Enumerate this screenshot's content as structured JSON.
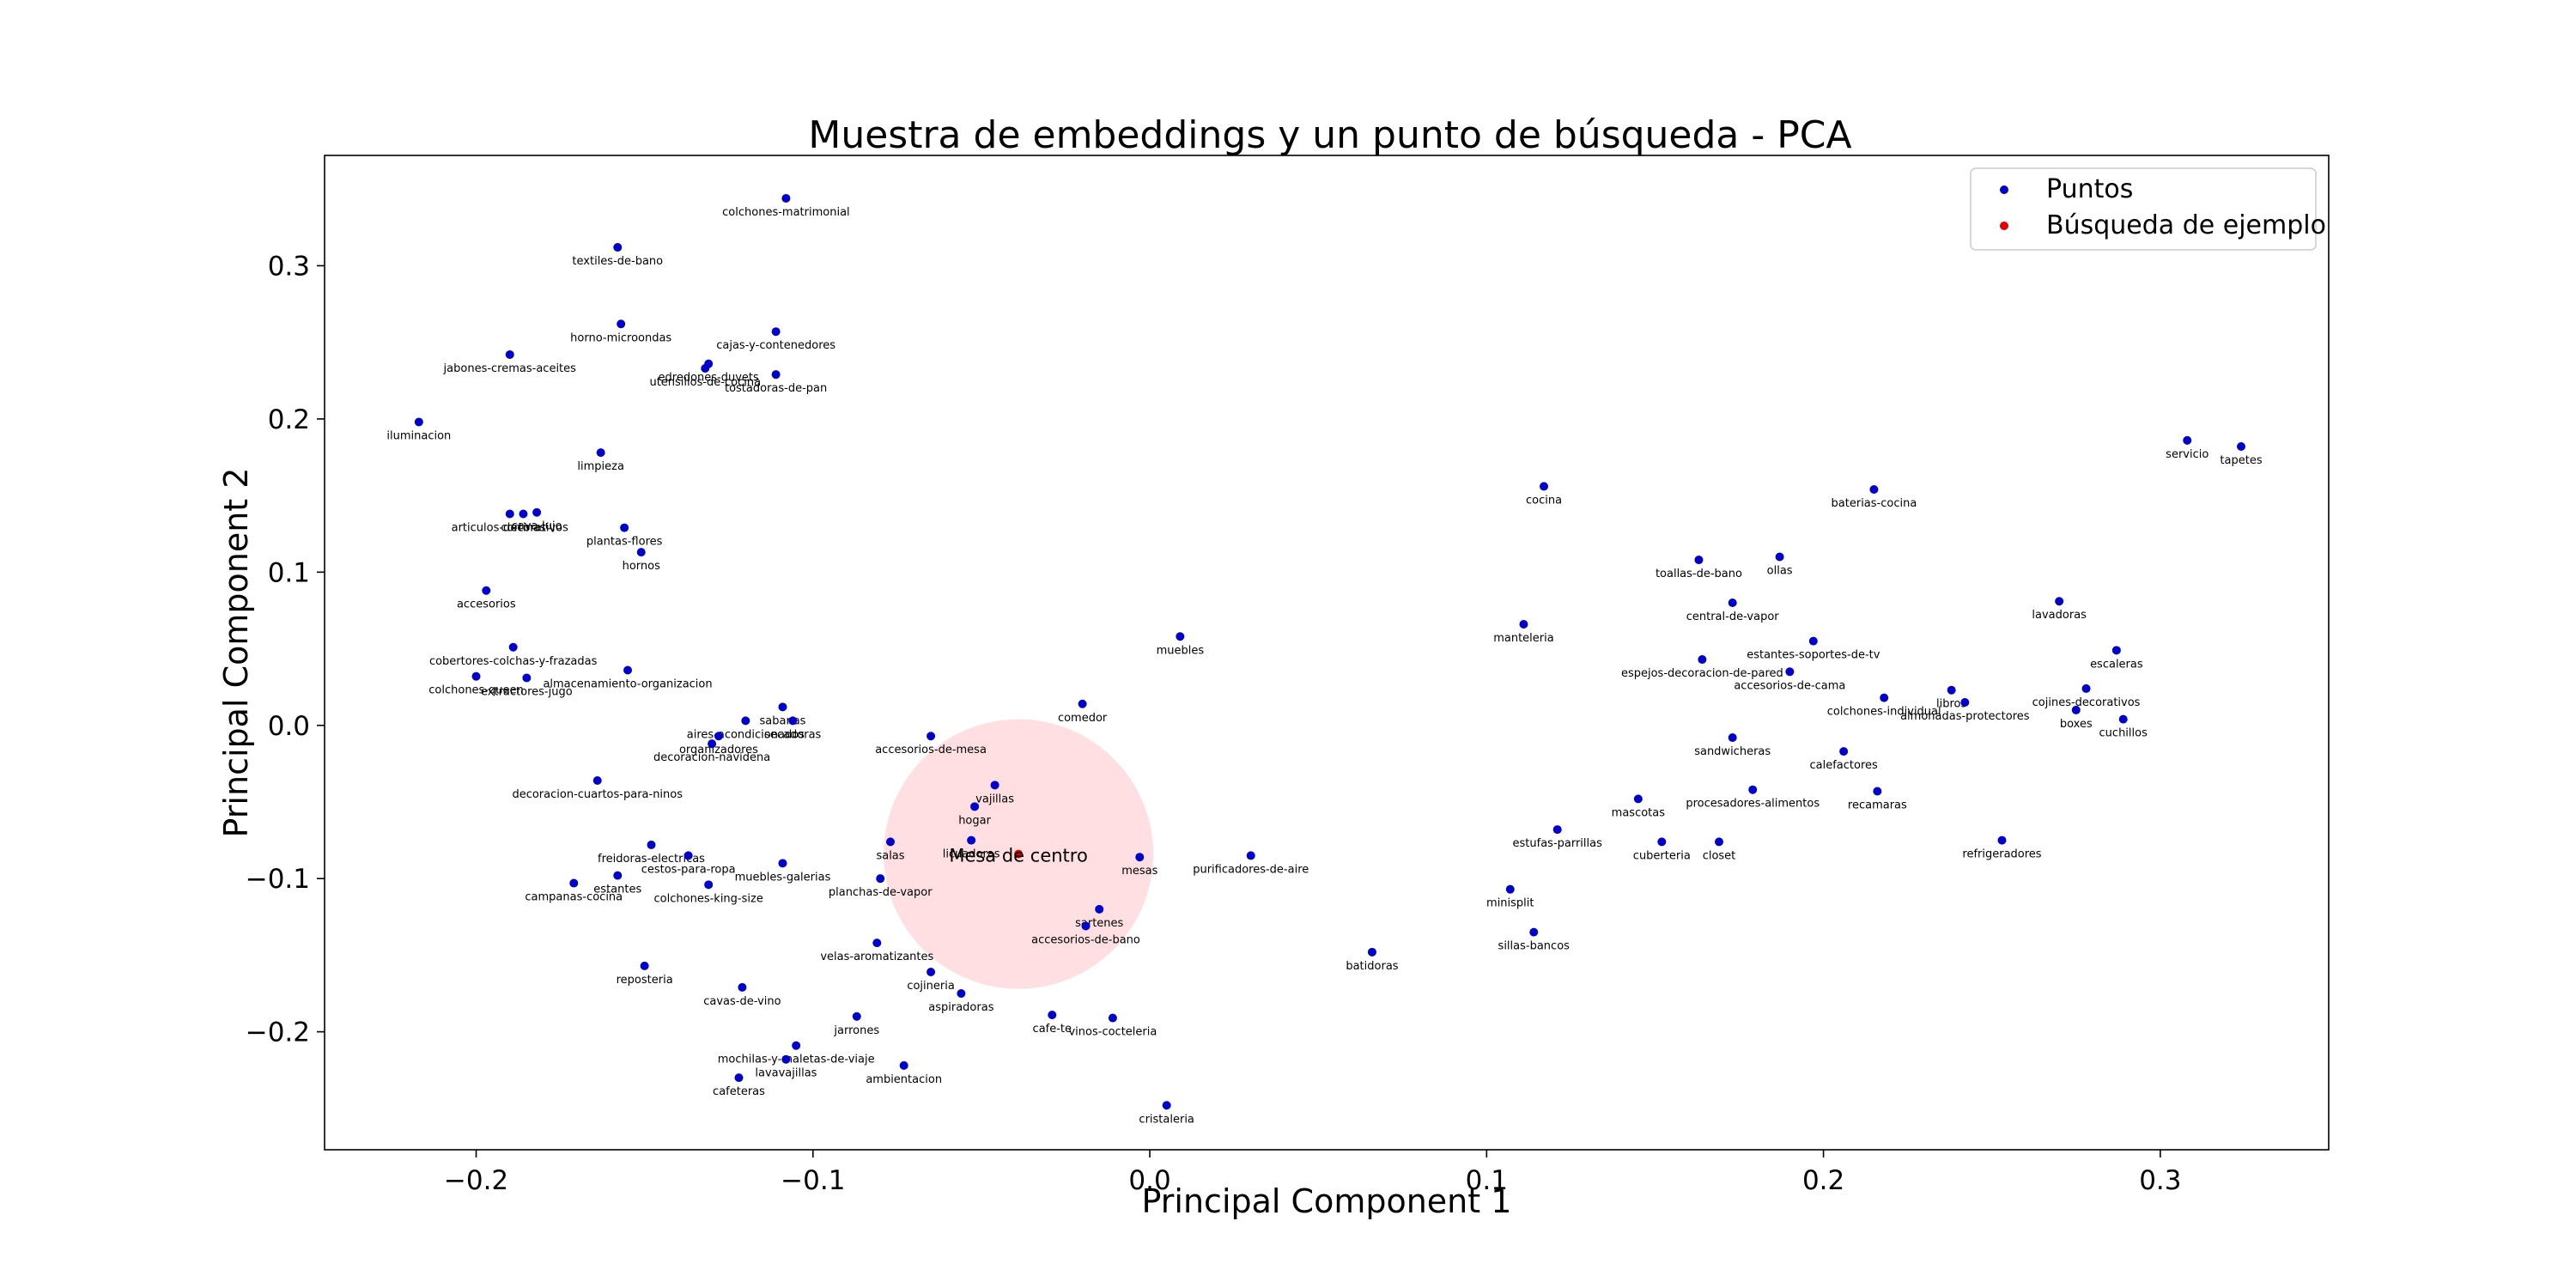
{
  "chart_data": {
    "type": "scatter",
    "title": "Muestra de embeddings y un punto de búsqueda - PCA",
    "xlabel": "Principal Component 1",
    "ylabel": "Principal Component 2",
    "xlim": [
      -0.245,
      0.35
    ],
    "ylim": [
      -0.277,
      0.372
    ],
    "xticks": [
      -0.2,
      -0.1,
      0.0,
      0.1,
      0.2,
      0.3
    ],
    "xtick_labels": [
      "−0.2",
      "−0.1",
      "0.0",
      "0.1",
      "0.2",
      "0.3"
    ],
    "yticks": [
      -0.2,
      -0.1,
      0.0,
      0.1,
      0.2,
      0.3
    ],
    "ytick_labels": [
      "−0.2",
      "−0.1",
      "0.0",
      "0.1",
      "0.2",
      "0.3"
    ],
    "grid": false,
    "legend_position": "top-right",
    "series": [
      {
        "name": "Puntos",
        "color": "#0000cc",
        "points": [
          {
            "label": "colchones-matrimonial",
            "x": -0.108,
            "y": 0.344
          },
          {
            "label": "textiles-de-bano",
            "x": -0.158,
            "y": 0.312
          },
          {
            "label": "horno-microondas",
            "x": -0.157,
            "y": 0.262
          },
          {
            "label": "cajas-y-contenedores",
            "x": -0.111,
            "y": 0.257
          },
          {
            "label": "jabones-cremas-aceites",
            "x": -0.19,
            "y": 0.242
          },
          {
            "label": "edredones-duvets",
            "x": -0.131,
            "y": 0.236
          },
          {
            "label": "utensilios-de-cocina",
            "x": -0.132,
            "y": 0.233
          },
          {
            "label": "tostadoras-de-pan",
            "x": -0.111,
            "y": 0.229
          },
          {
            "label": "iluminacion",
            "x": -0.217,
            "y": 0.198
          },
          {
            "label": "limpieza",
            "x": -0.163,
            "y": 0.178
          },
          {
            "label": "articulos-decorativos",
            "x": -0.19,
            "y": 0.138
          },
          {
            "label": "cortinas",
            "x": -0.186,
            "y": 0.138
          },
          {
            "label": "cava-lujo",
            "x": -0.182,
            "y": 0.139
          },
          {
            "label": "plantas-flores",
            "x": -0.156,
            "y": 0.129
          },
          {
            "label": "hornos",
            "x": -0.151,
            "y": 0.113
          },
          {
            "label": "accesorios",
            "x": -0.197,
            "y": 0.088
          },
          {
            "label": "cobertores-colchas-y-frazadas",
            "x": -0.189,
            "y": 0.051
          },
          {
            "label": "almacenamiento-organizacion",
            "x": -0.155,
            "y": 0.036
          },
          {
            "label": "colchones-queen",
            "x": -0.2,
            "y": 0.032
          },
          {
            "label": "extractores-jugo",
            "x": -0.185,
            "y": 0.031
          },
          {
            "label": "sabanas",
            "x": -0.109,
            "y": 0.012
          },
          {
            "label": "aires-acondicionados",
            "x": -0.12,
            "y": 0.003
          },
          {
            "label": "secadoras",
            "x": -0.106,
            "y": 0.003
          },
          {
            "label": "organizadores",
            "x": -0.128,
            "y": -0.007
          },
          {
            "label": "decoracion-navidena",
            "x": -0.13,
            "y": -0.012
          },
          {
            "label": "decoracion-cuartos-para-ninos",
            "x": -0.164,
            "y": -0.036
          },
          {
            "label": "freidoras-electricas",
            "x": -0.148,
            "y": -0.078
          },
          {
            "label": "cestos-para-ropa",
            "x": -0.137,
            "y": -0.085
          },
          {
            "label": "muebles-galerias",
            "x": -0.109,
            "y": -0.09
          },
          {
            "label": "estantes",
            "x": -0.158,
            "y": -0.098
          },
          {
            "label": "campanas-cocina",
            "x": -0.171,
            "y": -0.103
          },
          {
            "label": "colchones-king-size",
            "x": -0.131,
            "y": -0.104
          },
          {
            "label": "planchas-de-vapor",
            "x": -0.08,
            "y": -0.1
          },
          {
            "label": "salas",
            "x": -0.077,
            "y": -0.076
          },
          {
            "label": "reposteria",
            "x": -0.15,
            "y": -0.157
          },
          {
            "label": "cavas-de-vino",
            "x": -0.121,
            "y": -0.171
          },
          {
            "label": "velas-aromatizantes",
            "x": -0.081,
            "y": -0.142
          },
          {
            "label": "cojineria",
            "x": -0.065,
            "y": -0.161
          },
          {
            "label": "aspiradoras",
            "x": -0.056,
            "y": -0.175
          },
          {
            "label": "jarrones",
            "x": -0.087,
            "y": -0.19
          },
          {
            "label": "mochilas-y-maletas-de-viaje",
            "x": -0.105,
            "y": -0.209
          },
          {
            "label": "lavavajillas",
            "x": -0.108,
            "y": -0.218
          },
          {
            "label": "cafeteras",
            "x": -0.122,
            "y": -0.23
          },
          {
            "label": "ambientacion",
            "x": -0.073,
            "y": -0.222
          },
          {
            "label": "cafe-te",
            "x": -0.029,
            "y": -0.189
          },
          {
            "label": "vinos-cocteleria",
            "x": -0.011,
            "y": -0.191
          },
          {
            "label": "cristaleria",
            "x": 0.005,
            "y": -0.248
          },
          {
            "label": "accesorios-de-mesa",
            "x": -0.065,
            "y": -0.007
          },
          {
            "label": "comedor",
            "x": -0.02,
            "y": 0.014
          },
          {
            "label": "muebles",
            "x": 0.009,
            "y": 0.058
          },
          {
            "label": "vajillas",
            "x": -0.046,
            "y": -0.039
          },
          {
            "label": "hogar",
            "x": -0.052,
            "y": -0.053
          },
          {
            "label": "licuadoras",
            "x": -0.053,
            "y": -0.075
          },
          {
            "label": "mesas",
            "x": -0.003,
            "y": -0.086
          },
          {
            "label": "sartenes",
            "x": -0.015,
            "y": -0.12
          },
          {
            "label": "accesorios-de-bano",
            "x": -0.019,
            "y": -0.131
          },
          {
            "label": "purificadores-de-aire",
            "x": 0.03,
            "y": -0.085
          },
          {
            "label": "batidoras",
            "x": 0.066,
            "y": -0.148
          },
          {
            "label": "cocina",
            "x": 0.117,
            "y": 0.156
          },
          {
            "label": "manteleria",
            "x": 0.111,
            "y": 0.066
          },
          {
            "label": "minisplit",
            "x": 0.107,
            "y": -0.107
          },
          {
            "label": "sillas-bancos",
            "x": 0.114,
            "y": -0.135
          },
          {
            "label": "estufas-parrillas",
            "x": 0.121,
            "y": -0.068
          },
          {
            "label": "mascotas",
            "x": 0.145,
            "y": -0.048
          },
          {
            "label": "cuberteria",
            "x": 0.152,
            "y": -0.076
          },
          {
            "label": "closet",
            "x": 0.169,
            "y": -0.076
          },
          {
            "label": "toallas-de-bano",
            "x": 0.163,
            "y": 0.108
          },
          {
            "label": "ollas",
            "x": 0.187,
            "y": 0.11
          },
          {
            "label": "central-de-vapor",
            "x": 0.173,
            "y": 0.08
          },
          {
            "label": "espejos-decoracion-de-pared",
            "x": 0.164,
            "y": 0.043
          },
          {
            "label": "estantes-soportes-de-tv",
            "x": 0.197,
            "y": 0.055
          },
          {
            "label": "accesorios-de-cama",
            "x": 0.19,
            "y": 0.035
          },
          {
            "label": "sandwicheras",
            "x": 0.173,
            "y": -0.008
          },
          {
            "label": "procesadores-alimentos",
            "x": 0.179,
            "y": -0.042
          },
          {
            "label": "calefactores",
            "x": 0.206,
            "y": -0.017
          },
          {
            "label": "recamaras",
            "x": 0.216,
            "y": -0.043
          },
          {
            "label": "colchones-individual",
            "x": 0.218,
            "y": 0.018
          },
          {
            "label": "libros",
            "x": 0.238,
            "y": 0.023
          },
          {
            "label": "almohadas-protectores",
            "x": 0.242,
            "y": 0.015
          },
          {
            "label": "baterias-cocina",
            "x": 0.215,
            "y": 0.154
          },
          {
            "label": "servicio",
            "x": 0.308,
            "y": 0.186
          },
          {
            "label": "tapetes",
            "x": 0.324,
            "y": 0.182
          },
          {
            "label": "lavadoras",
            "x": 0.27,
            "y": 0.081
          },
          {
            "label": "escaleras",
            "x": 0.287,
            "y": 0.049
          },
          {
            "label": "cojines-decorativos",
            "x": 0.278,
            "y": 0.024
          },
          {
            "label": "boxes",
            "x": 0.275,
            "y": 0.01
          },
          {
            "label": "cuchillos",
            "x": 0.289,
            "y": 0.004
          },
          {
            "label": "refrigeradores",
            "x": 0.253,
            "y": -0.075
          }
        ]
      },
      {
        "name": "Búsqueda de ejemplo",
        "color": "#e60000",
        "points": [
          {
            "label": "Mesa de centro",
            "x": -0.039,
            "y": -0.084
          }
        ]
      }
    ],
    "highlight_circle": {
      "center_x": -0.039,
      "center_y": -0.084,
      "color": "#ffc0c6"
    }
  }
}
